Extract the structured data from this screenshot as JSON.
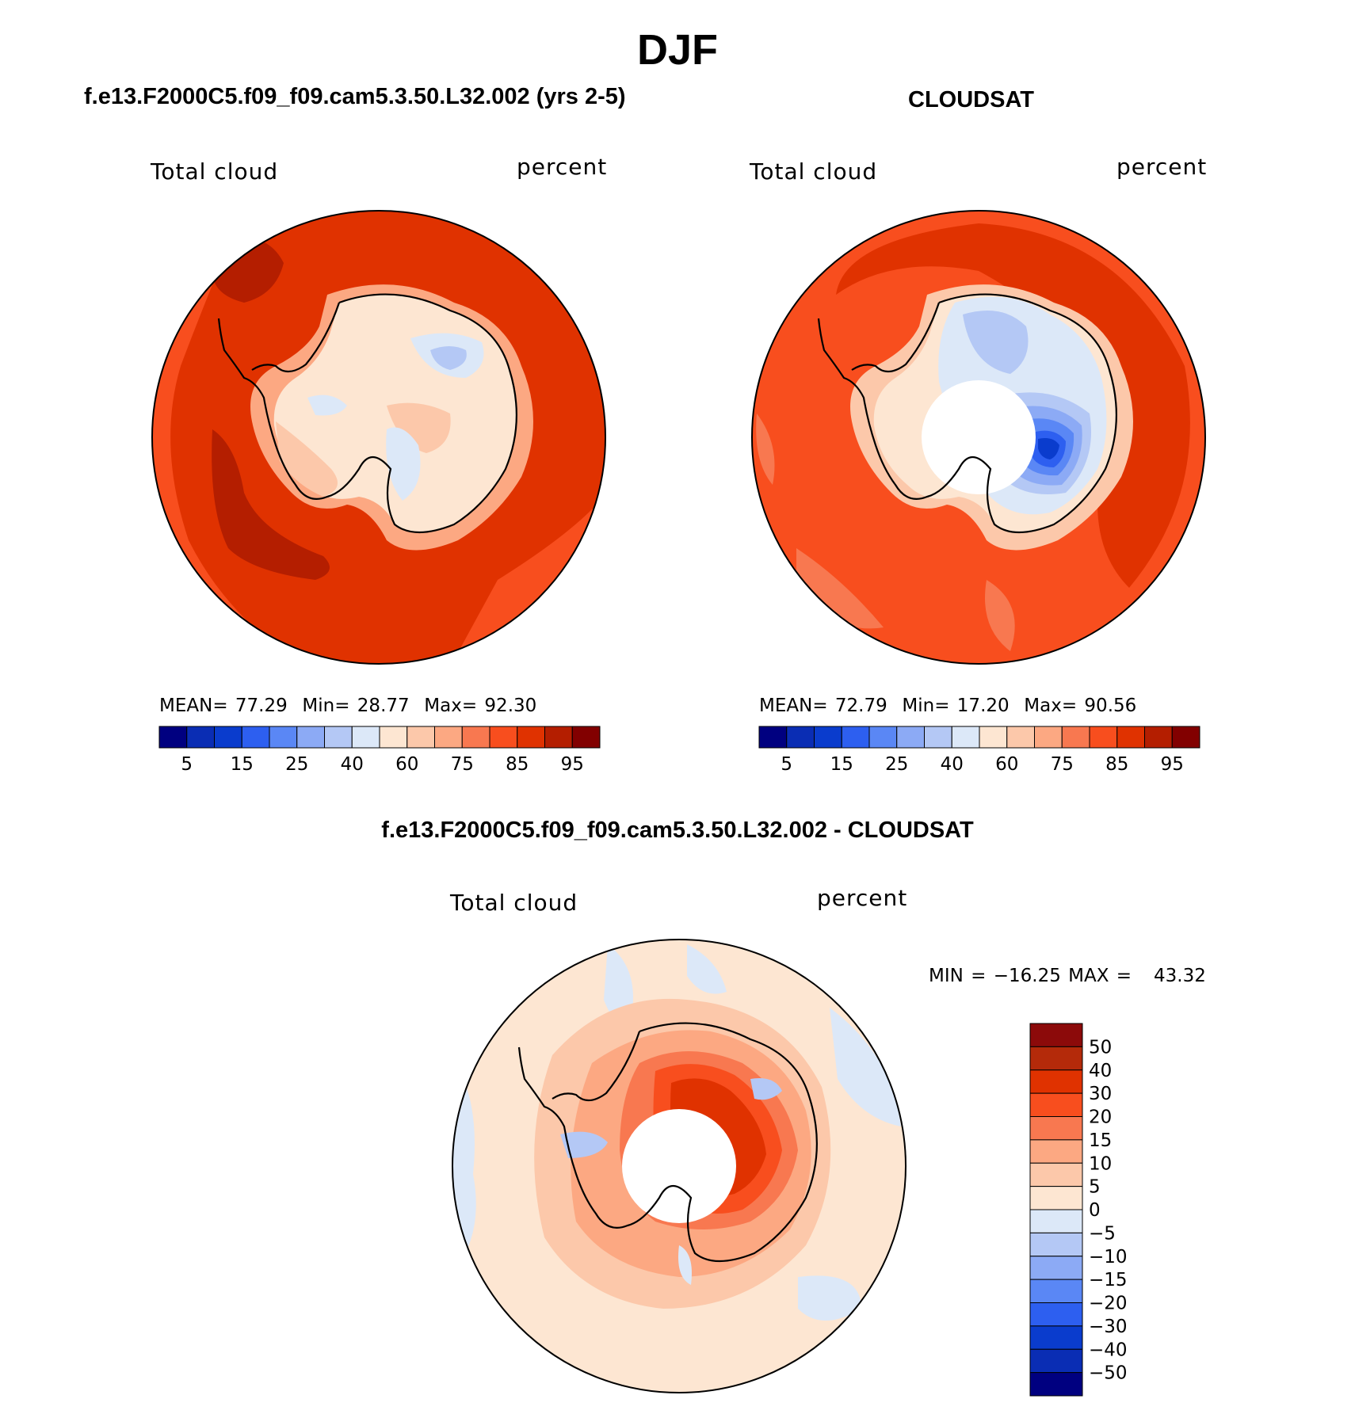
{
  "figure": {
    "title": "DJF",
    "panels": [
      {
        "id": "model",
        "case_title": "f.e13.F2000C5.f09_f09.cam5.3.50.L32.002 (yrs 2-5)",
        "left_label": "Total cloud",
        "right_label": "percent",
        "stats": {
          "mean_label": "MEAN=",
          "mean": "77.29",
          "min_label": "Min=",
          "min": "28.77",
          "max_label": "Max=",
          "max": "92.30"
        }
      },
      {
        "id": "obs",
        "case_title": "CLOUDSAT",
        "left_label": "Total cloud",
        "right_label": "percent",
        "stats": {
          "mean_label": "MEAN=",
          "mean": "72.79",
          "min_label": "Min=",
          "min": "17.20",
          "max_label": "Max=",
          "max": "90.56"
        }
      },
      {
        "id": "diff",
        "case_title": "f.e13.F2000C5.f09_f09.cam5.3.50.L32.002 - CLOUDSAT",
        "left_label": "Total cloud",
        "right_label": "percent",
        "minmax_text": "MIN = −16.25 MAX =   43.32"
      }
    ],
    "abs_colorbar": {
      "tick_labels": [
        "5",
        "15",
        "25",
        "40",
        "60",
        "75",
        "85",
        "95"
      ],
      "colors": [
        "#000080",
        "#0a2db4",
        "#0a3ccd",
        "#2d5ff0",
        "#5a87f5",
        "#8caaf5",
        "#b4c8f5",
        "#dce8f8",
        "#fde6d2",
        "#fcc8aa",
        "#fca882",
        "#f87850",
        "#f84e1e",
        "#e03200",
        "#b41e00",
        "#820000"
      ]
    },
    "diff_colorbar": {
      "tick_labels": [
        "50",
        "40",
        "30",
        "20",
        "15",
        "10",
        "5",
        "0",
        "−5",
        "−10",
        "−15",
        "−20",
        "−30",
        "−40",
        "−50"
      ],
      "colors_top_to_bottom": [
        "#8c0a0a",
        "#b42a0a",
        "#e03200",
        "#f84e1e",
        "#f87850",
        "#fca882",
        "#fcc8aa",
        "#fde6d2",
        "#dce8f8",
        "#b4c8f5",
        "#8caaf5",
        "#5a87f5",
        "#2d5ff0",
        "#0a3ccd",
        "#0a2db4",
        "#000080"
      ]
    },
    "map_colors": {
      "ocean_model": "#e03200",
      "ocean_model_dark": "#b41e00",
      "ocean_model_light": "#f84e1e",
      "ocean_obs": "#f84e1e",
      "ocean_obs_dark": "#e03200",
      "ocean_obs_light": "#f87850",
      "land_warm": "#fde6d2",
      "land_pink": "#fcc8aa",
      "land_salmon": "#fca882",
      "land_blue_pale": "#dce8f8",
      "land_blue": "#b4c8f5",
      "land_blue_mid": "#8caaf5",
      "land_blue_strong": "#5a87f5",
      "land_blue_deep": "#2d5ff0",
      "land_blue_deepest": "#0a3ccd",
      "diff_bg": "#fde6d2",
      "diff_blue": "#dce8f8",
      "diff_blue_mid": "#b4c8f5",
      "diff_pink": "#fcc8aa",
      "diff_salmon": "#fca882",
      "diff_orange": "#f87850",
      "diff_red": "#f84e1e",
      "diff_red_dark": "#e03200",
      "coast": "#000000",
      "missing": "#ffffff"
    }
  }
}
